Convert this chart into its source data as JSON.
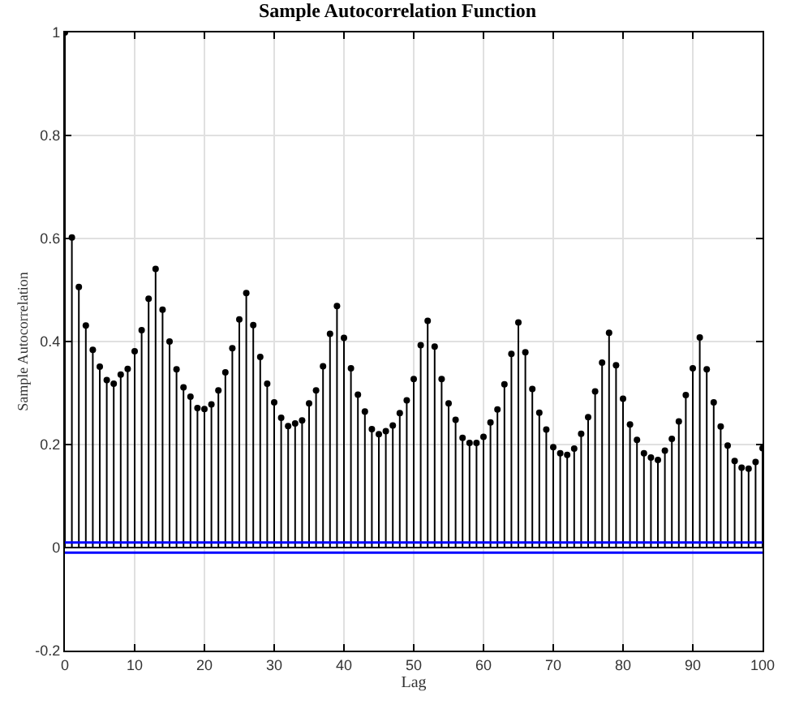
{
  "chart_data": {
    "type": "lollipop",
    "title": "Sample Autocorrelation Function",
    "xlabel": "Lag",
    "ylabel": "Sample Autocorrelation",
    "x": [
      0,
      1,
      2,
      3,
      4,
      5,
      6,
      7,
      8,
      9,
      10,
      11,
      12,
      13,
      14,
      15,
      16,
      17,
      18,
      19,
      20,
      21,
      22,
      23,
      24,
      25,
      26,
      27,
      28,
      29,
      30,
      31,
      32,
      33,
      34,
      35,
      36,
      37,
      38,
      39,
      40,
      41,
      42,
      43,
      44,
      45,
      46,
      47,
      48,
      49,
      50,
      51,
      52,
      53,
      54,
      55,
      56,
      57,
      58,
      59,
      60,
      61,
      62,
      63,
      64,
      65,
      66,
      67,
      68,
      69,
      70,
      71,
      72,
      73,
      74,
      75,
      76,
      77,
      78,
      79,
      80,
      81,
      82,
      83,
      84,
      85,
      86,
      87,
      88,
      89,
      90,
      91,
      92,
      93,
      94,
      95,
      96,
      97,
      98,
      99,
      100
    ],
    "values": [
      1,
      0.602,
      0.506,
      0.431,
      0.384,
      0.351,
      0.325,
      0.318,
      0.336,
      0.347,
      0.381,
      0.422,
      0.483,
      0.541,
      0.462,
      0.4,
      0.346,
      0.311,
      0.293,
      0.271,
      0.269,
      0.278,
      0.305,
      0.34,
      0.387,
      0.443,
      0.494,
      0.432,
      0.37,
      0.318,
      0.282,
      0.252,
      0.236,
      0.241,
      0.247,
      0.28,
      0.305,
      0.352,
      0.415,
      0.469,
      0.407,
      0.348,
      0.297,
      0.264,
      0.23,
      0.22,
      0.226,
      0.237,
      0.261,
      0.286,
      0.327,
      0.393,
      0.44,
      0.39,
      0.327,
      0.28,
      0.248,
      0.213,
      0.203,
      0.203,
      0.215,
      0.243,
      0.268,
      0.317,
      0.376,
      0.437,
      0.379,
      0.308,
      0.262,
      0.229,
      0.195,
      0.183,
      0.18,
      0.192,
      0.221,
      0.253,
      0.303,
      0.359,
      0.417,
      0.354,
      0.289,
      0.239,
      0.209,
      0.183,
      0.175,
      0.17,
      0.188,
      0.211,
      0.245,
      0.296,
      0.348,
      0.408,
      0.346,
      0.282,
      0.235,
      0.198,
      0.168,
      0.155,
      0.153,
      0.166,
      0.193
    ],
    "color": "#000000",
    "marker": "circle",
    "grid": true,
    "xlim": [
      0,
      100
    ],
    "xticks": [
      0,
      10,
      20,
      30,
      40,
      50,
      60,
      70,
      80,
      90,
      100
    ],
    "ylim": [
      -0.2,
      1
    ],
    "yticks": [
      -0.2,
      0,
      0.2,
      0.4,
      0.6,
      0.8,
      1
    ],
    "ref_lines": [
      {
        "axis": "y",
        "value": 0.01,
        "color": "#0000ff"
      },
      {
        "axis": "y",
        "value": -0.01,
        "color": "#0000ff"
      }
    ]
  }
}
